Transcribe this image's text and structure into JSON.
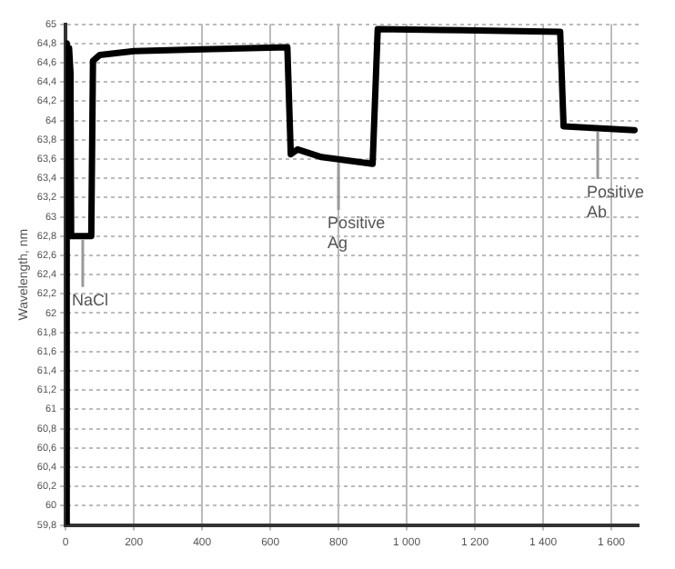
{
  "chart_data": {
    "type": "line",
    "ylabel": "Wavelength, nm",
    "x": [
      0,
      3,
      6,
      10,
      14,
      16,
      75,
      80,
      100,
      200,
      400,
      650,
      660,
      680,
      750,
      900,
      915,
      1100,
      1450,
      1460,
      1668
    ],
    "series": [
      {
        "color": "#000000",
        "values": [
          59.8,
          64.8,
          64.6,
          64.75,
          64.5,
          62.8,
          62.8,
          64.62,
          64.68,
          64.72,
          64.74,
          64.76,
          63.65,
          63.7,
          63.62,
          63.55,
          64.95,
          64.94,
          64.92,
          63.94,
          63.9
        ]
      }
    ],
    "xlim": [
      0,
      1680
    ],
    "xticks": [
      0,
      200,
      400,
      600,
      800,
      {
        "value": 1000,
        "label": "1 000"
      },
      {
        "value": 1200,
        "label": "1 200"
      },
      {
        "value": 1400,
        "label": "1 400"
      },
      {
        "value": 1600,
        "label": "1 600"
      }
    ],
    "ylim": [
      59.8,
      65
    ],
    "yticks": [
      {
        "value": 59.8,
        "label": "59,8"
      },
      60,
      {
        "value": 60.2,
        "label": "60,2"
      },
      {
        "value": 60.4,
        "label": "60,4"
      },
      {
        "value": 60.6,
        "label": "60,6"
      },
      {
        "value": 60.8,
        "label": "60,8"
      },
      61,
      {
        "value": 61.2,
        "label": "61,2"
      },
      {
        "value": 61.4,
        "label": "61,4"
      },
      {
        "value": 61.6,
        "label": "61,6"
      },
      {
        "value": 61.8,
        "label": "61,8"
      },
      62,
      {
        "value": 62.2,
        "label": "62,2"
      },
      {
        "value": 62.4,
        "label": "62,4"
      },
      {
        "value": 62.6,
        "label": "62,6"
      },
      {
        "value": 62.8,
        "label": "62,8"
      },
      63,
      {
        "value": 63.2,
        "label": "63,2"
      },
      {
        "value": 63.4,
        "label": "63,4"
      },
      {
        "value": 63.6,
        "label": "63,6"
      },
      {
        "value": 63.8,
        "label": "63,8"
      },
      64,
      {
        "value": 64.2,
        "label": "64,2"
      },
      {
        "value": 64.4,
        "label": "64,4"
      },
      {
        "value": 64.6,
        "label": "64,6"
      },
      {
        "value": 64.8,
        "label": "64,8"
      },
      65
    ],
    "grid": true,
    "legend": false,
    "marker": "none",
    "line_style": "solid",
    "annotations": [
      {
        "text": "NaCl",
        "x": 50,
        "y": 62.8
      },
      {
        "text": "Positive Ag",
        "x": 800,
        "y": 63.6
      },
      {
        "text": "Positive Ab",
        "x": 1560,
        "y": 63.92
      }
    ]
  }
}
